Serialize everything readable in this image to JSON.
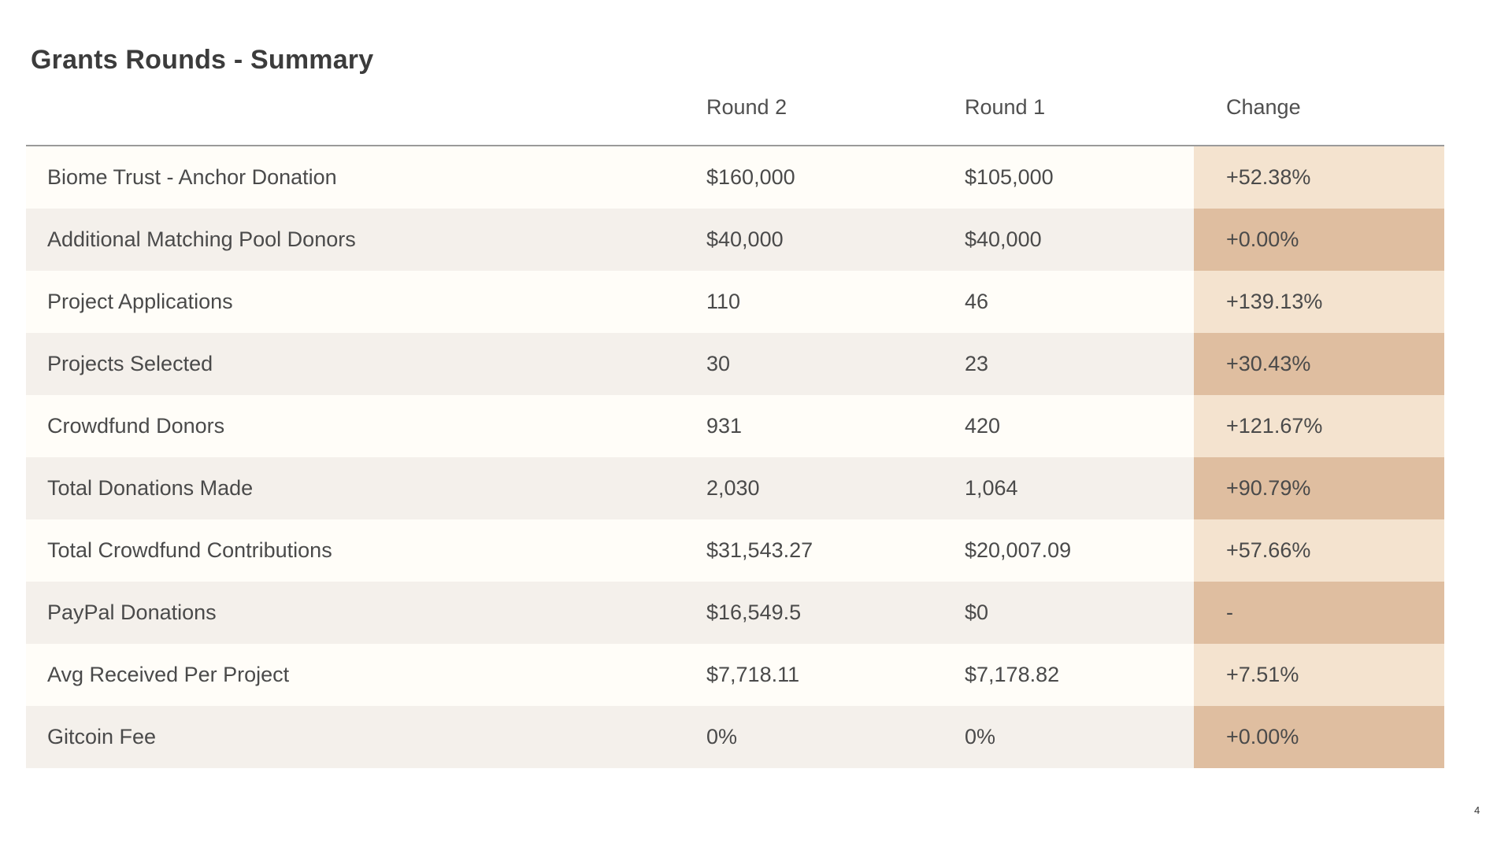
{
  "slide": {
    "title": "Grants Rounds - Summary",
    "page_number": "4"
  },
  "colors": {
    "row_odd": "#fffdf8",
    "row_even": "#f4f0eb",
    "change_light": "#f4e3cf",
    "change_dark": "#dfbea0",
    "header_rule": "#9a9a9a",
    "text": "#4a4a4a"
  },
  "table": {
    "headers": {
      "round2": "Round 2",
      "round1": "Round 1",
      "change": "Change"
    },
    "rows": [
      {
        "label": "Biome Trust - Anchor Donation",
        "round2": "$160,000",
        "round1": "$105,000",
        "change": "+52.38%"
      },
      {
        "label": "Additional Matching Pool Donors",
        "round2": "$40,000",
        "round1": "$40,000",
        "change": "+0.00%"
      },
      {
        "label": "Project Applications",
        "round2": "110",
        "round1": "46",
        "change": "+139.13%"
      },
      {
        "label": "Projects Selected",
        "round2": "30",
        "round1": "23",
        "change": "+30.43%"
      },
      {
        "label": "Crowdfund Donors",
        "round2": "931",
        "round1": "420",
        "change": "+121.67%"
      },
      {
        "label": "Total Donations Made",
        "round2": "2,030",
        "round1": "1,064",
        "change": "+90.79%"
      },
      {
        "label": "Total Crowdfund Contributions",
        "round2": "$31,543.27",
        "round1": "$20,007.09",
        "change": "+57.66%"
      },
      {
        "label": "PayPal Donations",
        "round2": "$16,549.5",
        "round1": "$0",
        "change": "-"
      },
      {
        "label": "Avg Received Per Project",
        "round2": "$7,718.11",
        "round1": "$7,178.82",
        "change": "+7.51%"
      },
      {
        "label": "Gitcoin Fee",
        "round2": "0%",
        "round1": "0%",
        "change": "+0.00%"
      }
    ]
  }
}
